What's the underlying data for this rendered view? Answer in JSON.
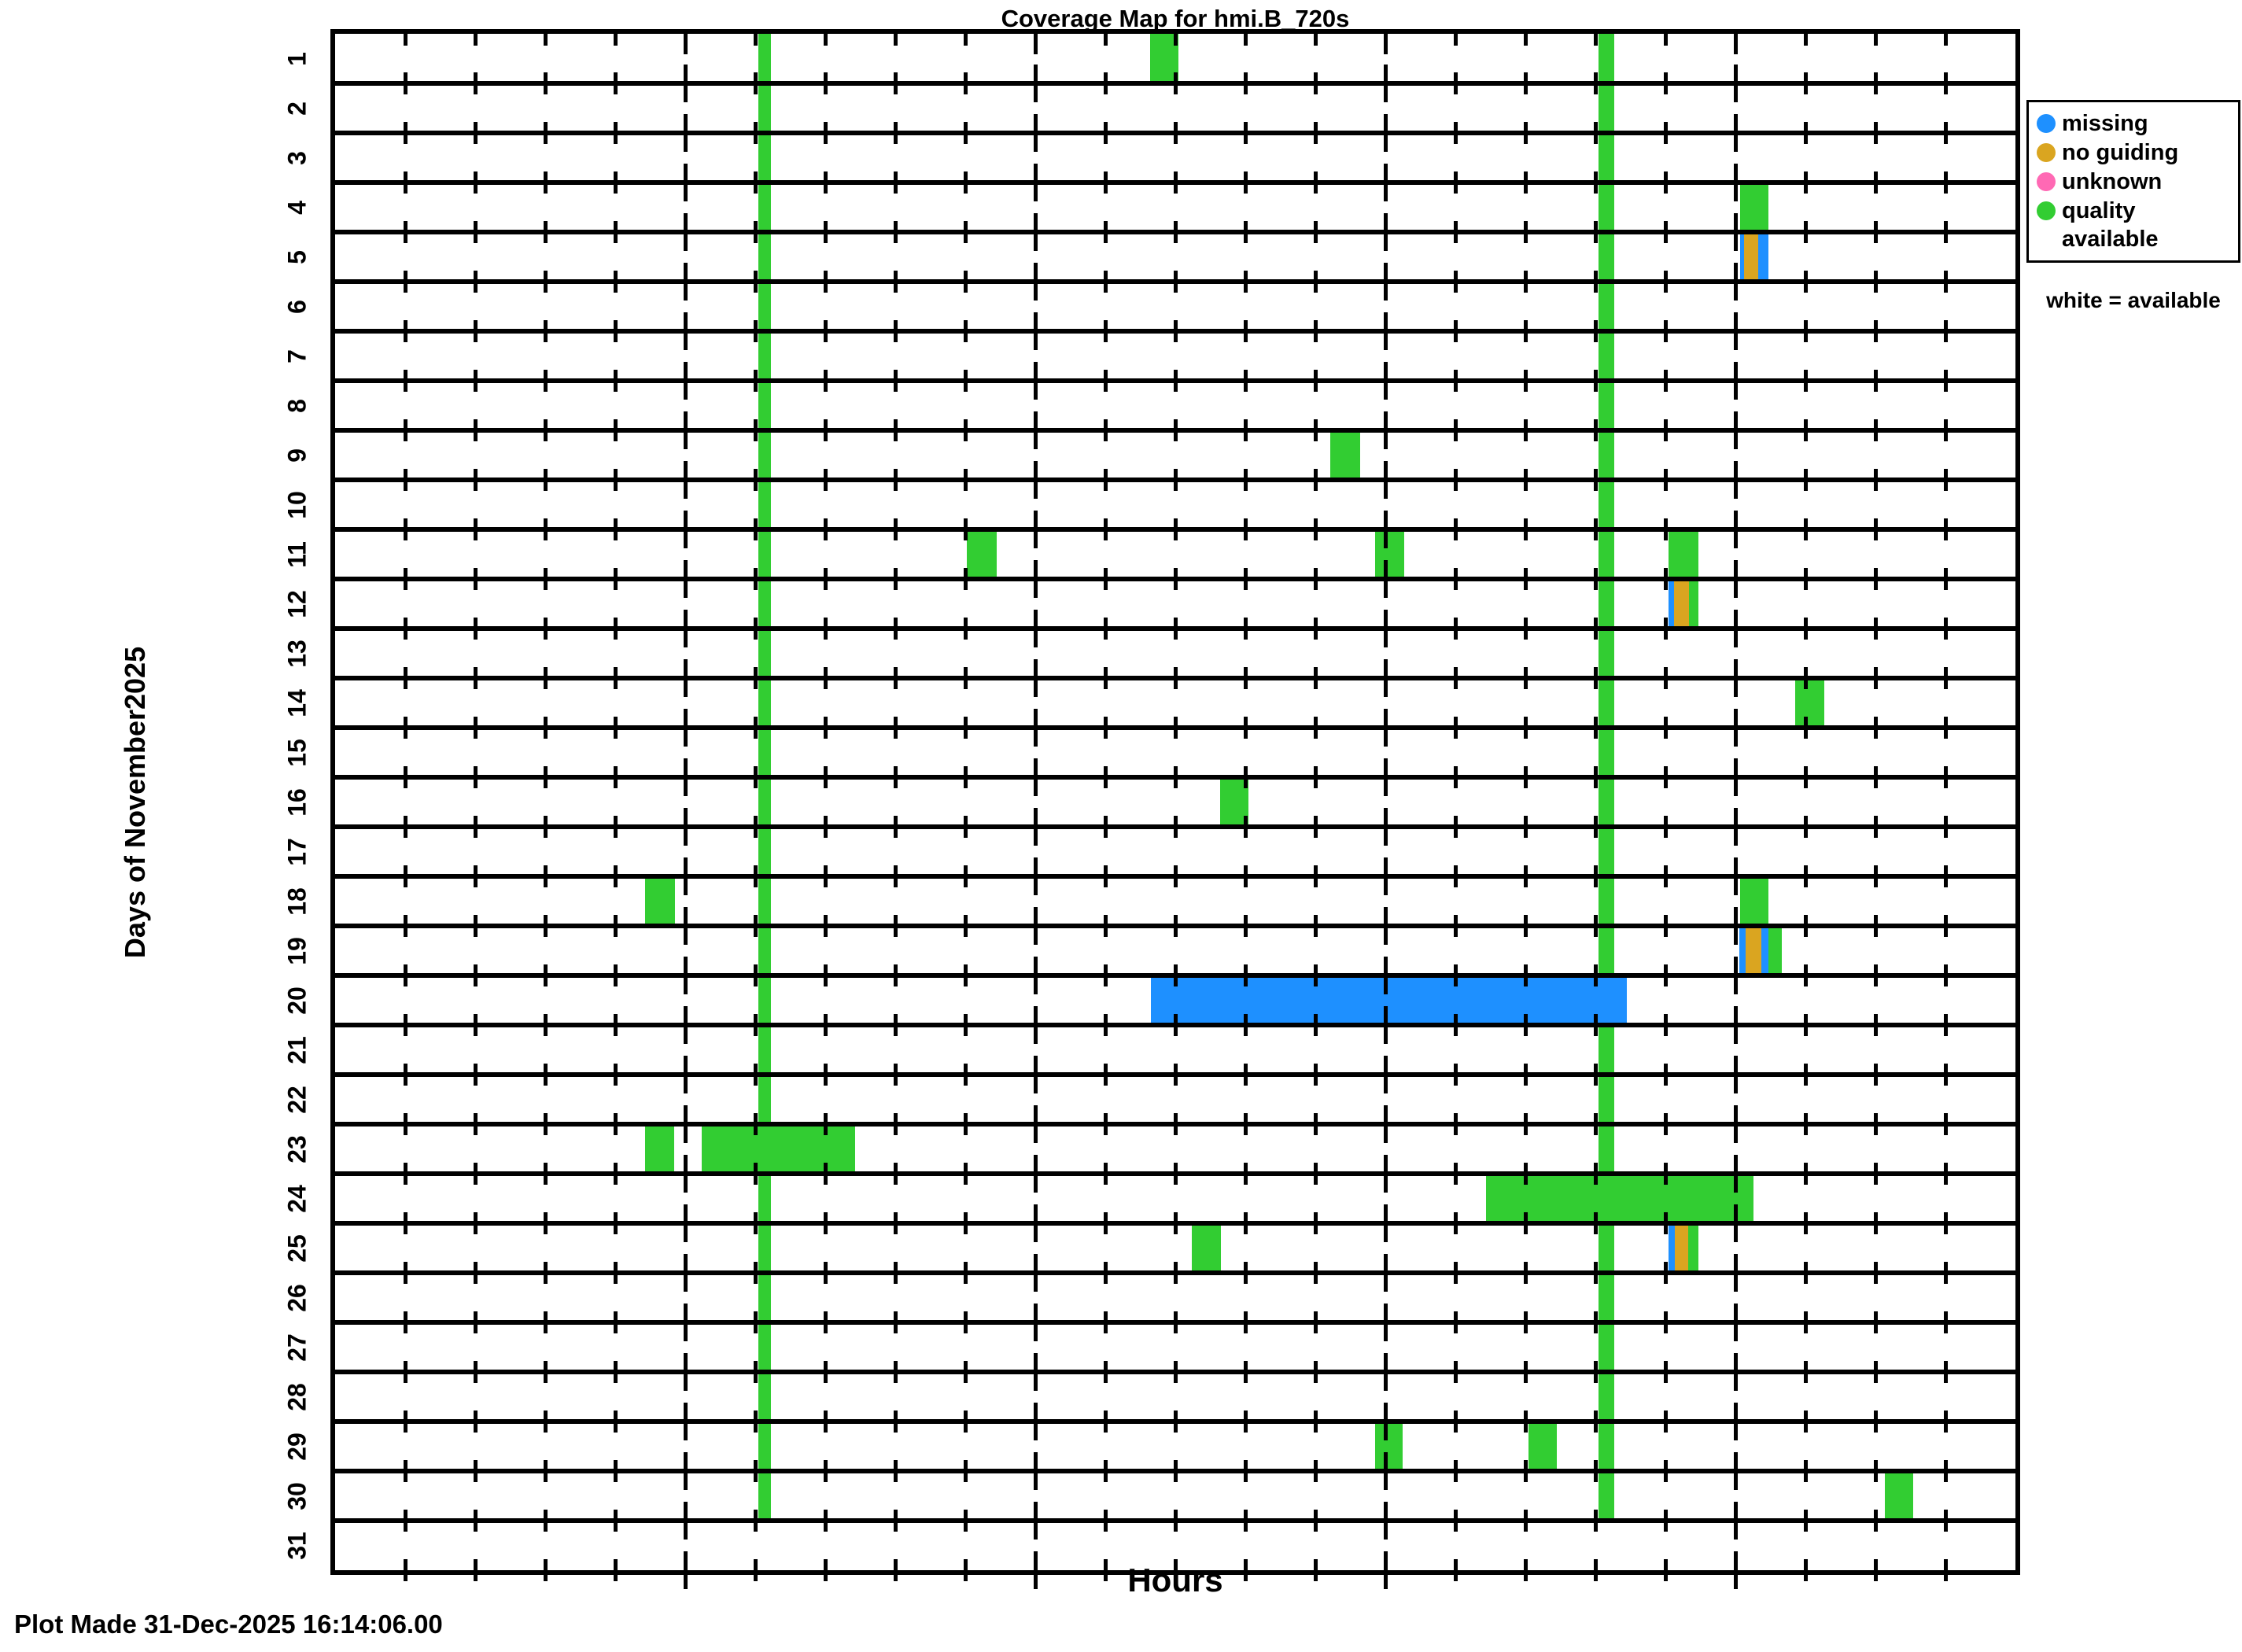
{
  "title": "Coverage Map for hmi.B_720s",
  "xlabel": "Hours",
  "ylabel": "Days of November2025",
  "footer": "Plot Made 31-Dec-2025 16:14:06.00",
  "legend": {
    "items": [
      {
        "label": "missing",
        "color": "#1E90FF"
      },
      {
        "label": "no guiding",
        "color": "#DAA520"
      },
      {
        "label": "unknown",
        "color": "#FF69B4"
      },
      {
        "label": "quality available",
        "color": "#32CD32"
      }
    ],
    "note": "white = available"
  },
  "chart_data": {
    "type": "coverage-map",
    "title": "Coverage Map for hmi.B_720s",
    "xlabel": "Hours",
    "ylabel": "Days of November2025",
    "background_meaning": "white = available",
    "x_range_hours": [
      0,
      24
    ],
    "x_major_ticks": [
      5,
      10,
      15,
      20
    ],
    "x_minor_tick_every_hours": 1,
    "day_labels": [
      "1",
      "2",
      "3",
      "4",
      "5",
      "6",
      "7",
      "8",
      "9",
      "10",
      "11",
      "12",
      "13",
      "14",
      "15",
      "16",
      "17",
      "18",
      "19",
      "20",
      "21",
      "22",
      "23",
      "24",
      "25",
      "26",
      "27",
      "28",
      "29",
      "30",
      "31"
    ],
    "status_colors": {
      "missing": "#1E90FF",
      "no guiding": "#DAA520",
      "unknown": "#FF69B4",
      "quality available": "#32CD32"
    },
    "full_height_columns": [
      {
        "day_start": 1,
        "day_end": 30,
        "status": "quality available",
        "start_hour": 6.04,
        "end_hour": 6.23
      },
      {
        "day_start": 1,
        "day_end": 30,
        "status": "quality available",
        "start_hour": 18.05,
        "end_hour": 18.27
      }
    ],
    "segments": [
      {
        "day": 1,
        "status": "quality available",
        "start_hour": 11.64,
        "end_hour": 12.05
      },
      {
        "day": 4,
        "status": "quality available",
        "start_hour": 20.07,
        "end_hour": 20.47
      },
      {
        "day": 5,
        "status": "missing",
        "start_hour": 20.07,
        "end_hour": 20.12
      },
      {
        "day": 5,
        "status": "no guiding",
        "start_hour": 20.12,
        "end_hour": 20.33
      },
      {
        "day": 5,
        "status": "missing",
        "start_hour": 20.33,
        "end_hour": 20.47
      },
      {
        "day": 9,
        "status": "quality available",
        "start_hour": 14.21,
        "end_hour": 14.64
      },
      {
        "day": 11,
        "status": "quality available",
        "start_hour": 9.02,
        "end_hour": 9.45
      },
      {
        "day": 11,
        "status": "quality available",
        "start_hour": 14.85,
        "end_hour": 15.27
      },
      {
        "day": 11,
        "status": "quality available",
        "start_hour": 19.05,
        "end_hour": 19.47
      },
      {
        "day": 12,
        "status": "missing",
        "start_hour": 19.05,
        "end_hour": 19.12
      },
      {
        "day": 12,
        "status": "no guiding",
        "start_hour": 19.12,
        "end_hour": 19.34
      },
      {
        "day": 12,
        "status": "quality available",
        "start_hour": 19.34,
        "end_hour": 19.47
      },
      {
        "day": 14,
        "status": "quality available",
        "start_hour": 20.85,
        "end_hour": 21.27
      },
      {
        "day": 16,
        "status": "quality available",
        "start_hour": 12.64,
        "end_hour": 13.05
      },
      {
        "day": 18,
        "status": "quality available",
        "start_hour": 4.43,
        "end_hour": 4.85
      },
      {
        "day": 18,
        "status": "quality available",
        "start_hour": 20.07,
        "end_hour": 20.47
      },
      {
        "day": 19,
        "status": "missing",
        "start_hour": 20.06,
        "end_hour": 20.15
      },
      {
        "day": 19,
        "status": "no guiding",
        "start_hour": 20.15,
        "end_hour": 20.37
      },
      {
        "day": 19,
        "status": "missing",
        "start_hour": 20.37,
        "end_hour": 20.47
      },
      {
        "day": 19,
        "status": "quality available",
        "start_hour": 20.47,
        "end_hour": 20.66
      },
      {
        "day": 20,
        "status": "missing",
        "start_hour": 11.65,
        "end_hour": 18.45
      },
      {
        "day": 23,
        "status": "quality available",
        "start_hour": 4.43,
        "end_hour": 4.84
      },
      {
        "day": 23,
        "status": "quality available",
        "start_hour": 5.24,
        "end_hour": 7.43
      },
      {
        "day": 24,
        "status": "quality available",
        "start_hour": 16.44,
        "end_hour": 20.26
      },
      {
        "day": 25,
        "status": "quality available",
        "start_hour": 12.24,
        "end_hour": 12.65
      },
      {
        "day": 25,
        "status": "missing",
        "start_hour": 19.05,
        "end_hour": 19.13
      },
      {
        "day": 25,
        "status": "no guiding",
        "start_hour": 19.13,
        "end_hour": 19.33
      },
      {
        "day": 25,
        "status": "quality available",
        "start_hour": 19.33,
        "end_hour": 19.47
      },
      {
        "day": 29,
        "status": "quality available",
        "start_hour": 14.85,
        "end_hour": 15.25
      },
      {
        "day": 29,
        "status": "quality available",
        "start_hour": 17.05,
        "end_hour": 17.45
      },
      {
        "day": 30,
        "status": "quality available",
        "start_hour": 22.13,
        "end_hour": 22.54
      }
    ]
  }
}
